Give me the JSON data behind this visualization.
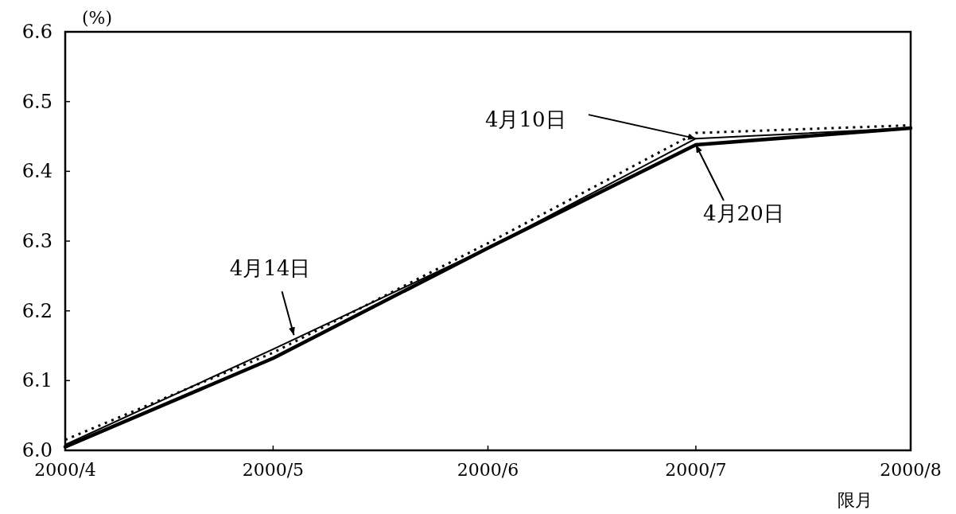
{
  "chart_data": {
    "type": "line",
    "ylabel": "(%)",
    "xlabel": "限月",
    "x": [
      "2000-04",
      "2000-05",
      "2000-06",
      "2000-07",
      "2000-08"
    ],
    "series": [
      {
        "color": "#000000",
        "line_style": "solid",
        "values": [
          6.008,
          6.145,
          6.29,
          6.447,
          6.462
        ]
      },
      {
        "color": "#000000",
        "line_style": "dotted",
        "values": [
          6.015,
          6.14,
          6.297,
          6.455,
          6.466
        ]
      },
      {
        "color": "#000000",
        "line_style": "solid",
        "values": [
          6.005,
          6.132,
          6.29,
          6.438,
          6.462
        ]
      }
    ],
    "xlim": [
      "2000-04",
      "2000-08"
    ],
    "xticks": [
      {
        "value": "2000-04",
        "label": "2000/4"
      },
      {
        "value": "2000-05",
        "label": "2000/5"
      },
      {
        "value": "2000-06",
        "label": "2000/6"
      },
      {
        "value": "2000-07",
        "label": "2000/7"
      },
      {
        "value": "2000-08",
        "label": "2000/8"
      }
    ],
    "ylim": [
      6.0,
      6.6
    ],
    "yticks": [
      {
        "value": 6.0,
        "label": "6.0"
      },
      {
        "value": 6.1,
        "label": "6.1"
      },
      {
        "value": 6.2,
        "label": "6.2"
      },
      {
        "value": 6.3,
        "label": "6.3"
      },
      {
        "value": 6.4,
        "label": "6.4"
      },
      {
        "value": 6.5,
        "label": "6.5"
      },
      {
        "value": 6.6,
        "label": "6.6"
      }
    ],
    "grid": false,
    "marker": "none",
    "annotations": [
      {
        "text": "4月10日",
        "x": "2000-07-01",
        "y": 6.447
      },
      {
        "text": "4月14日",
        "x": "2000-05-04",
        "y": 6.165
      },
      {
        "text": "4月20日",
        "x": "2000-07-01",
        "y": 6.438
      }
    ]
  }
}
